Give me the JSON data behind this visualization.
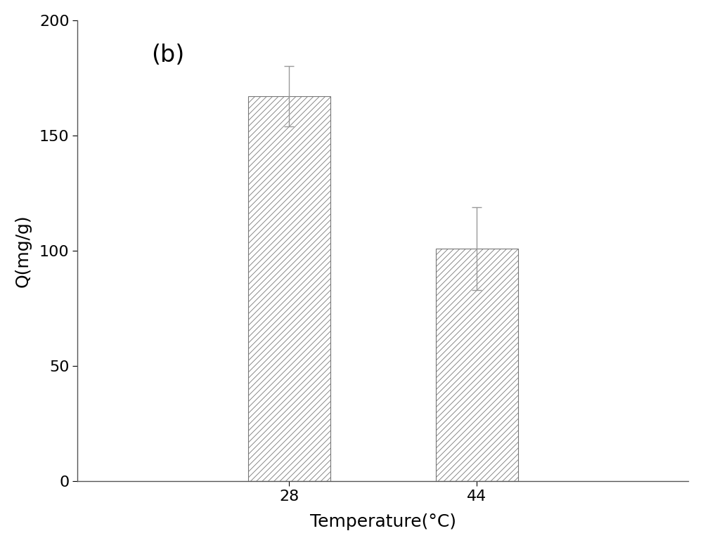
{
  "categories": [
    "28",
    "44"
  ],
  "values": [
    167,
    101
  ],
  "errors": [
    13,
    18
  ],
  "bar_positions": [
    0.33,
    0.67
  ],
  "bar_width": 0.13,
  "xlabel": "Temperature(°C)",
  "ylabel": "Q(mg/g)",
  "ylim": [
    0,
    200
  ],
  "yticks": [
    0,
    50,
    100,
    150,
    200
  ],
  "label_text": "(b)",
  "label_fontsize": 24,
  "axis_fontsize": 18,
  "tick_fontsize": 16,
  "bar_facecolor": "#ffffff",
  "bar_edgecolor": "#777777",
  "hatch": "////",
  "hatch_color": "#aaaaaa",
  "error_color": "#999999",
  "background_color": "#ffffff",
  "spine_color": "#555555"
}
